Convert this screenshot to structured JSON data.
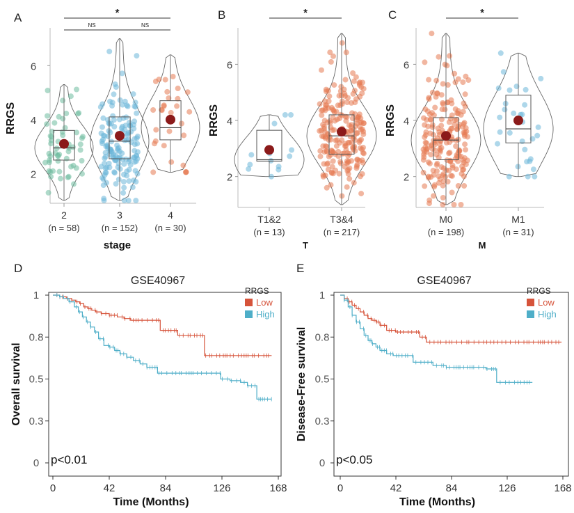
{
  "colors": {
    "stage_2": "#6dbb9e",
    "blue": "#6cb7d8",
    "orange": "#e57a52",
    "mean_dot": "#8b1a1a",
    "km_low": "#d6533a",
    "km_high": "#4eaec8",
    "axis": "#555555"
  },
  "chart_data": [
    {
      "panel": "A",
      "type": "violin-box",
      "xlabel": "stage",
      "ylabel": "RRGS",
      "ylim": [
        0.9,
        7.4
      ],
      "yticks": [
        2,
        4,
        6
      ],
      "groups": [
        {
          "label": "2",
          "n": "(n = 58)",
          "color": "stage_2",
          "count": 58,
          "min": 1.0,
          "q1": 2.5,
          "median": 2.95,
          "q3": 3.6,
          "max": 5.3,
          "mean": 3.1
        },
        {
          "label": "3",
          "n": "(n = 152)",
          "color": "blue",
          "count": 152,
          "min": 1.0,
          "q1": 2.55,
          "median": 3.2,
          "q3": 4.1,
          "max": 7.0,
          "mean": 3.4
        },
        {
          "label": "4",
          "n": "(n = 30)",
          "color": "orange",
          "count": 30,
          "min": 2.05,
          "q1": 3.25,
          "median": 3.7,
          "q3": 4.7,
          "max": 6.4,
          "mean": 4.0
        }
      ],
      "comparisons": [
        {
          "from": 0,
          "to": 2,
          "label": "*"
        },
        {
          "from": 0,
          "to": 1,
          "label": "NS"
        },
        {
          "from": 1,
          "to": 2,
          "label": "NS"
        }
      ]
    },
    {
      "panel": "B",
      "type": "violin-box",
      "xlabel": "T",
      "ylabel": "RRGS",
      "ylim": [
        0.9,
        7.3
      ],
      "yticks": [
        2,
        4,
        6
      ],
      "groups": [
        {
          "label": "T1&2",
          "n": "(n = 13)",
          "color": "blue",
          "count": 13,
          "min": 2.0,
          "q1": 2.55,
          "median": 2.6,
          "q3": 3.65,
          "max": 4.2,
          "mean": 2.95
        },
        {
          "label": "T3&4",
          "n": "(n = 217)",
          "color": "orange",
          "count": 217,
          "min": 1.0,
          "q1": 2.8,
          "median": 3.45,
          "q3": 4.2,
          "max": 7.1,
          "mean": 3.6
        }
      ],
      "comparisons": [
        {
          "from": 0,
          "to": 1,
          "label": "*"
        }
      ]
    },
    {
      "panel": "C",
      "type": "violin-box",
      "xlabel": "M",
      "ylabel": "RRGS",
      "ylim": [
        0.9,
        7.3
      ],
      "yticks": [
        2,
        4,
        6
      ],
      "groups": [
        {
          "label": "M0",
          "n": "(n = 198)",
          "color": "orange",
          "count": 198,
          "min": 1.0,
          "q1": 2.6,
          "median": 3.3,
          "q3": 4.1,
          "max": 7.1,
          "mean": 3.45
        },
        {
          "label": "M1",
          "n": "(n = 31)",
          "color": "blue",
          "count": 31,
          "min": 2.0,
          "q1": 3.2,
          "median": 3.7,
          "q3": 4.9,
          "max": 6.4,
          "mean": 4.0
        }
      ],
      "comparisons": [
        {
          "from": 0,
          "to": 1,
          "label": "*"
        }
      ]
    },
    {
      "panel": "D",
      "type": "line",
      "subtype": "kaplan-meier",
      "title": "GSE40967",
      "xlabel": "Time (Months)",
      "ylabel": "Overall survival",
      "xlim": [
        0,
        168
      ],
      "ylim": [
        0,
        1
      ],
      "xticks": [
        0,
        42,
        84,
        126,
        168
      ],
      "yticks": [
        0.0,
        0.3,
        0.5,
        0.8,
        1.0
      ],
      "ytick_values": [
        0.0,
        0.25,
        0.5,
        0.75,
        1.0
      ],
      "legend_title": "RRGS",
      "pvalue": "p<0.01",
      "series": [
        {
          "name": "Low",
          "color": "km_low",
          "x": [
            0,
            5,
            10,
            14,
            17,
            20,
            23,
            26,
            29,
            32,
            36,
            42,
            48,
            53,
            58,
            65,
            72,
            80,
            86,
            93,
            100,
            107,
            113,
            125,
            140,
            155,
            163
          ],
          "y": [
            1.0,
            0.99,
            0.98,
            0.97,
            0.96,
            0.95,
            0.93,
            0.92,
            0.91,
            0.9,
            0.89,
            0.88,
            0.87,
            0.86,
            0.85,
            0.85,
            0.85,
            0.79,
            0.79,
            0.76,
            0.76,
            0.76,
            0.64,
            0.64,
            0.64,
            0.64,
            0.64
          ]
        },
        {
          "name": "High",
          "color": "km_high",
          "x": [
            0,
            5,
            8,
            12,
            16,
            19,
            22,
            25,
            28,
            31,
            34,
            38,
            42,
            46,
            50,
            55,
            60,
            65,
            70,
            78,
            90,
            110,
            125,
            132,
            140,
            145,
            152,
            160,
            163
          ],
          "y": [
            1.0,
            0.99,
            0.98,
            0.96,
            0.93,
            0.9,
            0.87,
            0.84,
            0.81,
            0.78,
            0.74,
            0.7,
            0.69,
            0.67,
            0.65,
            0.63,
            0.61,
            0.59,
            0.57,
            0.535,
            0.535,
            0.535,
            0.5,
            0.49,
            0.48,
            0.46,
            0.38,
            0.38,
            0.38
          ]
        }
      ]
    },
    {
      "panel": "E",
      "type": "line",
      "subtype": "kaplan-meier",
      "title": "GSE40967",
      "xlabel": "Time (Months)",
      "ylabel": "Disease-Free survival",
      "xlim": [
        0,
        168
      ],
      "ylim": [
        0,
        1
      ],
      "xticks": [
        0,
        42,
        84,
        126,
        168
      ],
      "yticks": [
        0.0,
        0.3,
        0.5,
        0.8,
        1.0
      ],
      "ytick_values": [
        0.0,
        0.25,
        0.5,
        0.75,
        1.0
      ],
      "legend_title": "RRGS",
      "pvalue": "p<0.05",
      "series": [
        {
          "name": "Low",
          "color": "km_low",
          "x": [
            0,
            3,
            6,
            9,
            12,
            15,
            18,
            21,
            24,
            27,
            30,
            35,
            42,
            50,
            60,
            65,
            75,
            90,
            120,
            150,
            167
          ],
          "y": [
            1.0,
            0.98,
            0.96,
            0.94,
            0.92,
            0.9,
            0.88,
            0.86,
            0.85,
            0.84,
            0.82,
            0.79,
            0.78,
            0.78,
            0.75,
            0.72,
            0.72,
            0.72,
            0.72,
            0.72,
            0.72
          ]
        },
        {
          "name": "High",
          "color": "km_high",
          "x": [
            0,
            3,
            6,
            9,
            12,
            15,
            18,
            21,
            24,
            27,
            30,
            35,
            40,
            50,
            55,
            60,
            70,
            80,
            95,
            110,
            118,
            125,
            135,
            145
          ],
          "y": [
            1.0,
            0.97,
            0.93,
            0.88,
            0.84,
            0.8,
            0.76,
            0.73,
            0.71,
            0.69,
            0.67,
            0.65,
            0.64,
            0.64,
            0.6,
            0.6,
            0.58,
            0.57,
            0.57,
            0.56,
            0.48,
            0.48,
            0.48,
            0.48
          ]
        }
      ]
    }
  ],
  "panel_labels": [
    "A",
    "B",
    "C",
    "D",
    "E"
  ]
}
